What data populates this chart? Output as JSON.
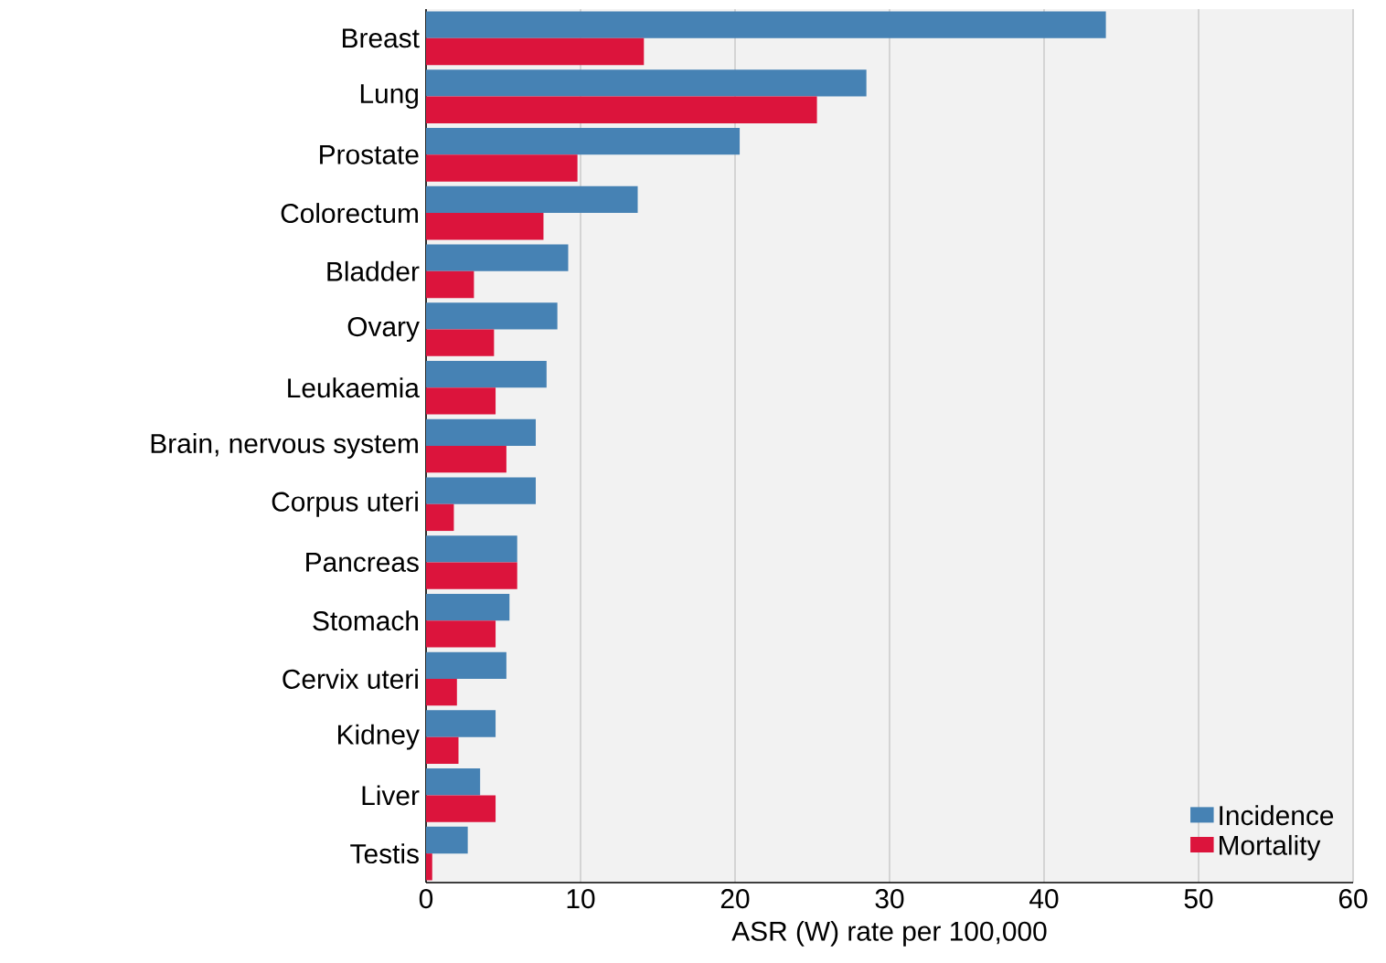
{
  "chart_data": {
    "type": "bar",
    "orientation": "horizontal",
    "categories": [
      "Breast",
      "Lung",
      "Prostate",
      "Colorectum",
      "Bladder",
      "Ovary",
      "Leukaemia",
      "Brain, nervous system",
      "Corpus uteri",
      "Pancreas",
      "Stomach",
      "Cervix uteri",
      "Kidney",
      "Liver",
      "Testis"
    ],
    "series": [
      {
        "name": "Incidence",
        "color": "#4682b4",
        "values": [
          44.0,
          28.5,
          20.3,
          13.7,
          9.2,
          8.5,
          7.8,
          7.1,
          7.1,
          5.9,
          5.4,
          5.2,
          4.5,
          3.5,
          2.7
        ]
      },
      {
        "name": "Mortality",
        "color": "#dc143c",
        "values": [
          14.1,
          25.3,
          9.8,
          7.6,
          3.1,
          4.4,
          4.5,
          5.2,
          1.8,
          5.9,
          4.5,
          2.0,
          2.1,
          4.5,
          0.4
        ]
      }
    ],
    "xlabel": "ASR (W) rate per 100,000",
    "xlim": [
      0,
      60
    ],
    "xticks": [
      0,
      10,
      20,
      30,
      40,
      50,
      60
    ],
    "grid": "x",
    "legend": "bottom right"
  }
}
